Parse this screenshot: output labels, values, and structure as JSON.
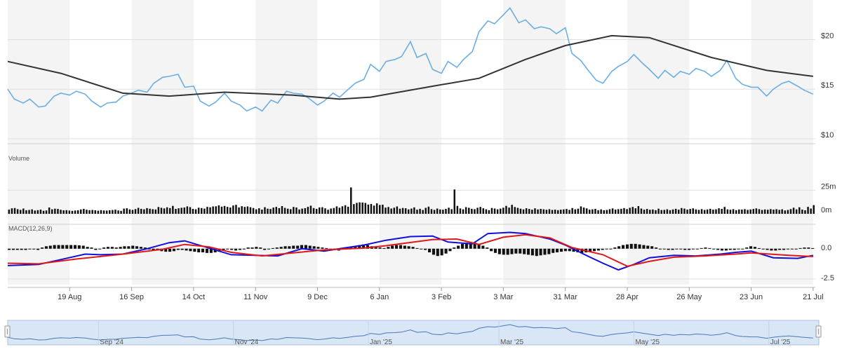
{
  "chart_data": {
    "type": "stock",
    "colors": {
      "price": "#6aaee4",
      "sma": "#333333",
      "volume": "#111111",
      "macd": "#1010d8",
      "signal": "#e01818",
      "histogram": "#111111",
      "band": "#f4f4f4",
      "grid": "#e0e0e0",
      "navigator_fill": "#d8e6f6",
      "navigator_line": "#4a78b4"
    },
    "price_axis": {
      "ticks": [
        {
          "value": 20,
          "label": "$20"
        },
        {
          "value": 15,
          "label": "$15"
        },
        {
          "value": 10,
          "label": "$10"
        }
      ],
      "range": [
        9.5,
        24
      ]
    },
    "volume_panel": {
      "label": "Volume",
      "ticks": [
        {
          "value": 25,
          "label": "25m"
        },
        {
          "value": 0,
          "label": "0m"
        }
      ],
      "range": [
        0,
        32
      ]
    },
    "macd_panel": {
      "label": "MACD(12,26,9)",
      "ticks": [
        {
          "value": 0,
          "label": "0.0"
        },
        {
          "value": -2.5,
          "label": "-2.5"
        }
      ],
      "range": [
        -3.2,
        1.9
      ]
    },
    "x_axis": {
      "date_range": [
        "2024-07-22",
        "2025-07-22"
      ],
      "ticks": [
        {
          "date": "2024-08-19",
          "label": "19 Aug"
        },
        {
          "date": "2024-09-16",
          "label": "16 Sep"
        },
        {
          "date": "2024-10-14",
          "label": "14 Oct"
        },
        {
          "date": "2024-11-11",
          "label": "11 Nov"
        },
        {
          "date": "2024-12-09",
          "label": "9 Dec"
        },
        {
          "date": "2025-01-06",
          "label": "6 Jan"
        },
        {
          "date": "2025-02-03",
          "label": "3 Feb"
        },
        {
          "date": "2025-03-03",
          "label": "3 Mar"
        },
        {
          "date": "2025-03-31",
          "label": "31 Mar"
        },
        {
          "date": "2025-04-28",
          "label": "28 Apr"
        },
        {
          "date": "2025-05-26",
          "label": "26 May"
        },
        {
          "date": "2025-06-23",
          "label": "23 Jun"
        },
        {
          "date": "2025-07-21",
          "label": "21 Jul"
        }
      ]
    },
    "price_series": [
      [
        "2024-07-22",
        15.0
      ],
      [
        "2024-07-25",
        14.0
      ],
      [
        "2024-07-29",
        13.6
      ],
      [
        "2024-08-01",
        14.0
      ],
      [
        "2024-08-05",
        13.2
      ],
      [
        "2024-08-08",
        13.3
      ],
      [
        "2024-08-12",
        14.3
      ],
      [
        "2024-08-15",
        14.6
      ],
      [
        "2024-08-19",
        14.4
      ],
      [
        "2024-08-22",
        14.8
      ],
      [
        "2024-08-26",
        14.5
      ],
      [
        "2024-08-29",
        13.8
      ],
      [
        "2024-09-02",
        13.2
      ],
      [
        "2024-09-05",
        13.6
      ],
      [
        "2024-09-09",
        13.7
      ],
      [
        "2024-09-12",
        14.3
      ],
      [
        "2024-09-16",
        14.6
      ],
      [
        "2024-09-19",
        14.9
      ],
      [
        "2024-09-23",
        14.7
      ],
      [
        "2024-09-26",
        15.6
      ],
      [
        "2024-09-30",
        16.2
      ],
      [
        "2024-10-03",
        16.3
      ],
      [
        "2024-10-07",
        16.5
      ],
      [
        "2024-10-10",
        15.2
      ],
      [
        "2024-10-14",
        15.3
      ],
      [
        "2024-10-17",
        13.8
      ],
      [
        "2024-10-21",
        13.3
      ],
      [
        "2024-10-24",
        13.7
      ],
      [
        "2024-10-28",
        14.6
      ],
      [
        "2024-10-31",
        13.8
      ],
      [
        "2024-11-04",
        13.4
      ],
      [
        "2024-11-07",
        12.8
      ],
      [
        "2024-11-11",
        13.2
      ],
      [
        "2024-11-14",
        12.8
      ],
      [
        "2024-11-18",
        13.9
      ],
      [
        "2024-11-21",
        13.6
      ],
      [
        "2024-11-25",
        14.8
      ],
      [
        "2024-11-28",
        14.6
      ],
      [
        "2024-12-02",
        14.5
      ],
      [
        "2024-12-05",
        14.1
      ],
      [
        "2024-12-09",
        13.4
      ],
      [
        "2024-12-12",
        13.8
      ],
      [
        "2024-12-16",
        14.6
      ],
      [
        "2024-12-19",
        14.2
      ],
      [
        "2024-12-23",
        15.0
      ],
      [
        "2024-12-26",
        15.6
      ],
      [
        "2024-12-30",
        16.0
      ],
      [
        "2025-01-02",
        17.5
      ],
      [
        "2025-01-06",
        16.8
      ],
      [
        "2025-01-09",
        17.8
      ],
      [
        "2025-01-13",
        18.0
      ],
      [
        "2025-01-16",
        18.3
      ],
      [
        "2025-01-20",
        19.8
      ],
      [
        "2025-01-23",
        18.2
      ],
      [
        "2025-01-27",
        18.6
      ],
      [
        "2025-01-30",
        17.0
      ],
      [
        "2025-02-03",
        16.6
      ],
      [
        "2025-02-06",
        17.8
      ],
      [
        "2025-02-10",
        17.2
      ],
      [
        "2025-02-13",
        18.0
      ],
      [
        "2025-02-17",
        18.8
      ],
      [
        "2025-02-20",
        20.8
      ],
      [
        "2025-02-24",
        21.9
      ],
      [
        "2025-02-27",
        21.6
      ],
      [
        "2025-03-03",
        22.5
      ],
      [
        "2025-03-06",
        23.2
      ],
      [
        "2025-03-10",
        21.7
      ],
      [
        "2025-03-13",
        22.0
      ],
      [
        "2025-03-17",
        21.1
      ],
      [
        "2025-03-20",
        21.3
      ],
      [
        "2025-03-24",
        21.1
      ],
      [
        "2025-03-27",
        20.6
      ],
      [
        "2025-03-31",
        21.2
      ],
      [
        "2025-04-03",
        18.6
      ],
      [
        "2025-04-07",
        17.9
      ],
      [
        "2025-04-10",
        17.0
      ],
      [
        "2025-04-14",
        15.9
      ],
      [
        "2025-04-17",
        15.6
      ],
      [
        "2025-04-21",
        16.8
      ],
      [
        "2025-04-24",
        17.3
      ],
      [
        "2025-04-28",
        17.8
      ],
      [
        "2025-05-01",
        18.5
      ],
      [
        "2025-05-05",
        17.6
      ],
      [
        "2025-05-08",
        17.0
      ],
      [
        "2025-05-12",
        16.1
      ],
      [
        "2025-05-15",
        16.9
      ],
      [
        "2025-05-19",
        16.2
      ],
      [
        "2025-05-22",
        16.8
      ],
      [
        "2025-05-26",
        16.5
      ],
      [
        "2025-05-29",
        17.1
      ],
      [
        "2025-06-02",
        16.8
      ],
      [
        "2025-06-05",
        16.3
      ],
      [
        "2025-06-09",
        16.9
      ],
      [
        "2025-06-12",
        17.9
      ],
      [
        "2025-06-16",
        16.1
      ],
      [
        "2025-06-19",
        15.5
      ],
      [
        "2025-06-23",
        15.2
      ],
      [
        "2025-06-26",
        15.2
      ],
      [
        "2025-06-30",
        14.3
      ],
      [
        "2025-07-03",
        15.0
      ],
      [
        "2025-07-07",
        15.6
      ],
      [
        "2025-07-10",
        15.8
      ],
      [
        "2025-07-14",
        15.3
      ],
      [
        "2025-07-17",
        14.9
      ],
      [
        "2025-07-21",
        14.5
      ]
    ],
    "sma_series": [
      [
        "2024-07-22",
        17.8
      ],
      [
        "2024-08-15",
        16.6
      ],
      [
        "2024-09-12",
        14.6
      ],
      [
        "2024-10-03",
        14.3
      ],
      [
        "2024-10-28",
        14.7
      ],
      [
        "2024-11-28",
        14.4
      ],
      [
        "2024-12-19",
        14.0
      ],
      [
        "2025-01-02",
        14.2
      ],
      [
        "2025-01-30",
        15.3
      ],
      [
        "2025-02-20",
        16.1
      ],
      [
        "2025-03-13",
        18.0
      ],
      [
        "2025-03-31",
        19.4
      ],
      [
        "2025-04-21",
        20.4
      ],
      [
        "2025-05-08",
        20.2
      ],
      [
        "2025-06-05",
        18.2
      ],
      [
        "2025-06-30",
        16.9
      ],
      [
        "2025-07-21",
        16.3
      ]
    ],
    "volume_series": [
      4.5,
      5.8,
      6.1,
      4.9,
      4.2,
      5.6,
      3.8,
      4.1,
      4.7,
      3.5,
      3.9,
      4.4,
      3.2,
      3.6,
      6.7,
      4.8,
      5.4,
      5.1,
      4.3,
      3.7,
      3.9,
      3.4,
      3.1,
      3.5,
      3.8,
      4.6,
      5.2,
      4.3,
      3.9,
      4.1,
      3.7,
      3.3,
      3.9,
      3.6,
      3.4,
      3.8,
      4.0,
      4.4,
      3.6,
      3.1,
      5.5,
      5.9,
      4.7,
      4.2,
      5.0,
      6.3,
      5.3,
      4.8,
      6.0,
      5.4,
      4.9,
      4.6,
      7.2,
      6.4,
      5.7,
      6.9,
      6.1,
      8.4,
      5.2,
      5.9,
      6.4,
      6.7,
      7.9,
      7.1,
      5.2,
      4.8,
      6.5,
      6.1,
      5.5,
      7.4,
      6.9,
      7.8,
      8.0,
      9.0,
      7.6,
      8.3,
      7.4,
      6.7,
      8.8,
      9.5,
      6.8,
      8.1,
      7.3,
      7.8,
      7.0,
      6.2,
      4.8,
      5.9,
      4.5,
      7.0,
      5.4,
      5.1,
      6.6,
      7.4,
      6.0,
      8.2,
      6.3,
      5.4,
      4.9,
      7.3,
      6.7,
      4.6,
      5.5,
      6.0,
      7.4,
      8.6,
      6.1,
      5.2,
      6.8,
      7.0,
      5.8,
      4.3,
      5.6,
      6.2,
      7.9,
      6.5,
      8.0,
      9.1,
      7.5,
      28.0,
      10.3,
      11.6,
      12.1,
      12.0,
      11.5,
      9.8,
      10.4,
      8.7,
      11.1,
      9.4,
      9.7,
      6.6,
      7.2,
      5.6,
      6.5,
      7.8,
      5.4,
      6.2,
      5.9,
      4.7,
      5.5,
      6.8,
      4.4,
      5.3,
      4.1,
      6.3,
      7.6,
      5.0,
      4.2,
      5.6,
      4.6,
      4.3,
      5.2,
      6.5,
      4.9,
      25.8,
      8.4,
      5.7,
      4.8,
      7.1,
      6.4,
      5.3,
      4.9,
      6.4,
      7.3,
      5.9,
      4.8,
      3.9,
      6.2,
      5.6,
      4.8,
      5.5,
      6.5,
      8.4,
      6.6,
      9.5,
      7.2,
      6.3,
      5.4,
      4.7,
      5.9,
      5.1,
      4.4,
      5.8,
      4.6,
      5.2,
      4.8,
      4.3,
      4.9,
      4.1,
      4.5,
      3.9,
      4.4,
      4.7,
      5.1,
      4.2,
      6.1,
      4.8,
      5.4,
      7.9,
      6.6,
      5.7,
      4.4,
      4.8,
      5.2,
      3.9,
      4.7,
      3.8,
      4.1,
      4.9,
      5.7,
      4.5,
      4.9,
      5.3,
      6.1,
      5.0,
      6.4,
      7.3,
      5.9,
      8.2,
      5.6,
      4.4,
      5.1,
      4.3,
      4.6,
      3.9,
      5.4,
      4.0,
      4.2,
      4.8,
      3.9,
      4.6,
      5.3,
      4.4,
      6.1,
      5.5,
      4.5,
      5.1,
      5.8,
      4.7,
      4.2,
      5.0,
      4.1,
      4.6,
      5.3,
      4.4,
      4.8,
      5.9,
      5.2,
      7.3,
      4.7,
      4.3,
      4.9,
      3.9,
      4.6,
      4.5,
      4.9,
      4.2,
      4.6,
      5.1,
      5.7,
      4.9,
      4.1,
      4.6,
      4.3,
      5.0,
      4.5,
      4.9,
      4.2,
      4.8,
      3.6,
      4.1,
      5.0,
      6.5,
      4.7,
      6.9,
      4.5,
      3.8,
      7.4,
      5.6,
      9.2
    ],
    "macd_series": [
      [
        "2024-07-22",
        -1.4
      ],
      [
        "2024-08-05",
        -1.3
      ],
      [
        "2024-08-15",
        -0.9
      ],
      [
        "2024-08-26",
        -0.45
      ],
      [
        "2024-09-02",
        -0.5
      ],
      [
        "2024-09-12",
        -0.45
      ],
      [
        "2024-09-23",
        0.0
      ],
      [
        "2024-10-03",
        0.5
      ],
      [
        "2024-10-10",
        0.65
      ],
      [
        "2024-10-21",
        0.05
      ],
      [
        "2024-10-31",
        -0.5
      ],
      [
        "2024-11-11",
        -0.55
      ],
      [
        "2024-11-21",
        -0.6
      ],
      [
        "2024-12-02",
        0.0
      ],
      [
        "2024-12-12",
        -0.2
      ],
      [
        "2024-12-19",
        0.0
      ],
      [
        "2024-12-30",
        0.3
      ],
      [
        "2025-01-09",
        0.7
      ],
      [
        "2025-01-20",
        1.0
      ],
      [
        "2025-01-30",
        1.05
      ],
      [
        "2025-02-06",
        0.55
      ],
      [
        "2025-02-17",
        0.4
      ],
      [
        "2025-02-24",
        1.25
      ],
      [
        "2025-03-06",
        1.35
      ],
      [
        "2025-03-13",
        1.25
      ],
      [
        "2025-03-24",
        0.8
      ],
      [
        "2025-03-31",
        0.3
      ],
      [
        "2025-04-10",
        -0.6
      ],
      [
        "2025-04-17",
        -1.2
      ],
      [
        "2025-04-24",
        -1.75
      ],
      [
        "2025-05-01",
        -1.3
      ],
      [
        "2025-05-08",
        -0.75
      ],
      [
        "2025-05-19",
        -0.55
      ],
      [
        "2025-05-29",
        -0.6
      ],
      [
        "2025-06-09",
        -0.45
      ],
      [
        "2025-06-16",
        -0.3
      ],
      [
        "2025-06-23",
        -0.2
      ],
      [
        "2025-07-03",
        -0.75
      ],
      [
        "2025-07-14",
        -0.8
      ],
      [
        "2025-07-21",
        -0.55
      ]
    ],
    "signal_series": [
      [
        "2024-07-22",
        -1.2
      ],
      [
        "2024-08-05",
        -1.25
      ],
      [
        "2024-08-22",
        -0.85
      ],
      [
        "2024-09-12",
        -0.45
      ],
      [
        "2024-09-30",
        -0.05
      ],
      [
        "2024-10-10",
        0.35
      ],
      [
        "2024-10-21",
        0.15
      ],
      [
        "2024-10-31",
        -0.3
      ],
      [
        "2024-11-14",
        -0.6
      ],
      [
        "2024-11-28",
        -0.35
      ],
      [
        "2024-12-12",
        -0.1
      ],
      [
        "2024-12-30",
        0.05
      ],
      [
        "2025-01-09",
        0.25
      ],
      [
        "2025-01-30",
        0.75
      ],
      [
        "2025-02-10",
        0.8
      ],
      [
        "2025-02-20",
        0.35
      ],
      [
        "2025-03-03",
        0.95
      ],
      [
        "2025-03-13",
        1.15
      ],
      [
        "2025-03-24",
        0.9
      ],
      [
        "2025-04-03",
        0.1
      ],
      [
        "2025-04-17",
        -0.5
      ],
      [
        "2025-04-28",
        -1.45
      ],
      [
        "2025-05-08",
        -1.05
      ],
      [
        "2025-05-19",
        -0.7
      ],
      [
        "2025-06-02",
        -0.6
      ],
      [
        "2025-06-16",
        -0.45
      ],
      [
        "2025-06-23",
        -0.35
      ],
      [
        "2025-07-10",
        -0.55
      ],
      [
        "2025-07-21",
        -0.65
      ]
    ],
    "histogram_series": [
      -0.1,
      -0.1,
      -0.1,
      -0.1,
      -0.1,
      0.0,
      0.0,
      -0.1,
      0.1,
      0.2,
      0.25,
      0.3,
      0.3,
      0.3,
      0.3,
      0.3,
      0.3,
      0.28,
      0.25,
      0.15,
      0.1,
      -0.1,
      -0.05,
      0.1,
      0.15,
      0.15,
      0.1,
      0.15,
      0.2,
      0.2,
      0.25,
      0.2,
      0.15,
      0.1,
      0.0,
      -0.1,
      -0.15,
      -0.2,
      -0.25,
      -0.25,
      -0.2,
      -0.1,
      -0.1,
      -0.15,
      -0.2,
      -0.25,
      -0.3,
      -0.3,
      -0.35,
      -0.35,
      -0.3,
      -0.25,
      -0.1,
      -0.05,
      -0.1,
      -0.15,
      -0.1,
      0.0,
      0.1,
      0.1,
      0.15,
      0.1,
      -0.1,
      -0.05,
      0.05,
      0.1,
      0.15,
      0.2,
      0.2,
      0.25,
      0.25,
      0.3,
      0.3,
      0.25,
      0.2,
      0.15,
      0.1,
      0.05,
      0.0,
      -0.1,
      -0.15,
      0.0,
      0.05,
      0.1,
      0.2,
      0.3,
      0.35,
      0.3,
      0.2,
      0.15,
      0.1,
      0.05,
      0.15,
      0.25,
      0.3,
      0.3,
      0.25,
      0.2,
      0.15,
      0.05,
      0.0,
      -0.1,
      -0.3,
      -0.5,
      -0.6,
      -0.55,
      -0.4,
      -0.2,
      0.1,
      0.25,
      0.4,
      0.5,
      0.55,
      0.5,
      0.4,
      0.25,
      0.1,
      -0.2,
      -0.35,
      -0.45,
      -0.5,
      -0.5,
      -0.45,
      -0.4,
      -0.4,
      -0.45,
      -0.5,
      -0.55,
      -0.6,
      -0.55,
      -0.5,
      -0.45,
      -0.35,
      -0.3,
      -0.25,
      -0.2,
      -0.2,
      -0.25,
      -0.3,
      -0.35,
      -0.3,
      -0.25,
      -0.2,
      -0.15,
      -0.1,
      -0.05,
      0.0,
      0.1,
      0.2,
      0.3,
      0.35,
      0.4,
      0.4,
      0.35,
      0.3,
      0.25,
      0.2,
      0.1,
      0.0,
      -0.05,
      -0.1,
      -0.1,
      -0.05,
      -0.05,
      -0.1,
      -0.1,
      -0.05,
      0.0,
      0.05,
      0.1,
      0.05,
      -0.05,
      -0.1,
      -0.15,
      -0.15,
      -0.1,
      -0.1,
      -0.05,
      0.0,
      0.1,
      0.2,
      0.15,
      0.05,
      -0.05,
      -0.1,
      -0.15,
      -0.15,
      -0.1,
      -0.1,
      -0.05,
      -0.05,
      0.0,
      0.05,
      0.1,
      0.1,
      0.05
    ],
    "navigator": {
      "labels": [
        {
          "date": "2024-09-01",
          "label": "Sep '24"
        },
        {
          "date": "2024-11-01",
          "label": "Nov '24"
        },
        {
          "date": "2025-01-01",
          "label": "Jan '25"
        },
        {
          "date": "2025-03-01",
          "label": "Mar '25"
        },
        {
          "date": "2025-05-01",
          "label": "May '25"
        },
        {
          "date": "2025-07-01",
          "label": "Jul '25"
        }
      ]
    }
  }
}
